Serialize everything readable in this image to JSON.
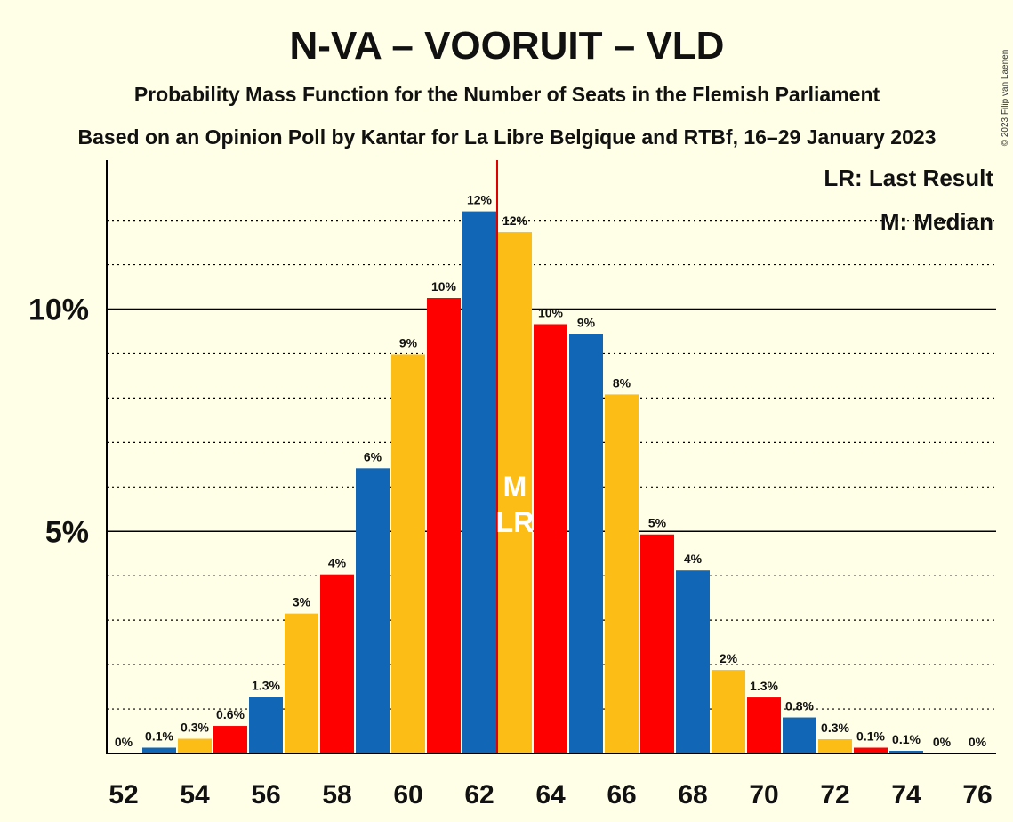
{
  "title": "N-VA – VOORUIT – VLD",
  "subtitle1": "Probability Mass Function for the Number of Seats in the Flemish Parliament",
  "subtitle2": "Based on an Opinion Poll by Kantar for La Libre Belgique and RTBf, 16–29 January 2023",
  "copyright": "© 2023 Filip van Laenen",
  "legend": {
    "lr": "LR: Last Result",
    "m": "M: Median"
  },
  "markers": {
    "median_label": "M",
    "last_result_label": "LR"
  },
  "colors": {
    "blue": "#1166B5",
    "yellow": "#FBBD16",
    "red": "#FF0000",
    "background": "#FFFEE6"
  },
  "chart_data": {
    "type": "bar",
    "x": [
      52,
      53,
      54,
      55,
      56,
      57,
      58,
      59,
      60,
      61,
      62,
      63,
      64,
      65,
      66,
      67,
      68,
      69,
      70,
      71,
      72,
      73,
      74,
      75,
      76
    ],
    "values": [
      0,
      0.13,
      0.33,
      0.62,
      1.27,
      3.15,
      4.03,
      6.42,
      8.98,
      10.25,
      12.2,
      11.73,
      9.66,
      9.44,
      8.08,
      4.93,
      4.12,
      1.88,
      1.26,
      0.81,
      0.32,
      0.13,
      0.06,
      0,
      0
    ],
    "labels": [
      "0%",
      "0.1%",
      "0.3%",
      "0.6%",
      "1.3%",
      "3%",
      "4%",
      "6%",
      "9%",
      "10%",
      "12%",
      "12%",
      "10%",
      "9%",
      "8%",
      "5%",
      "4%",
      "2%",
      "1.3%",
      "0.8%",
      "0.3%",
      "0.1%",
      "0.1%",
      "0%",
      "0%"
    ],
    "bar_colors": [
      "yellow",
      "blue",
      "yellow",
      "red",
      "blue",
      "yellow",
      "red",
      "blue",
      "yellow",
      "red",
      "blue",
      "yellow",
      "red",
      "blue",
      "yellow",
      "red",
      "blue",
      "yellow",
      "red",
      "blue",
      "yellow",
      "red",
      "blue",
      "yellow",
      "red"
    ],
    "xtick_labels": [
      "52",
      "54",
      "56",
      "58",
      "60",
      "62",
      "64",
      "66",
      "68",
      "70",
      "72",
      "74",
      "76"
    ],
    "ytick_labels": [
      "5%",
      "10%"
    ],
    "yticks": [
      5,
      10
    ],
    "ylim": [
      0,
      13.2
    ],
    "median": 63,
    "last_result": 63
  }
}
